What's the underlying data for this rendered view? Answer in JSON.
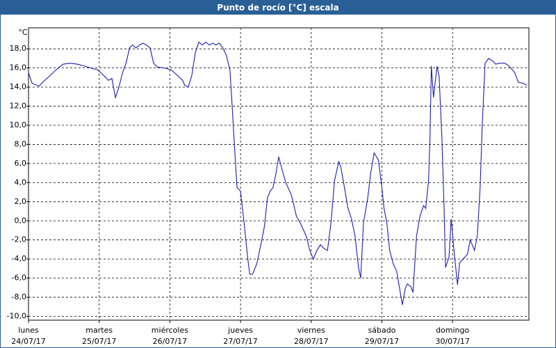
{
  "chart_data": {
    "type": "line",
    "title": "Punto de rocío [°C] escala",
    "y_label": "°C",
    "color": "#1c1cb0",
    "grid": true,
    "xlim": [
      0,
      7.08
    ],
    "ylim": [
      -10.4,
      20.2
    ],
    "yticks": [
      {
        "value": 18,
        "label": "18,0"
      },
      {
        "value": 16,
        "label": "16,0"
      },
      {
        "value": 14,
        "label": "14,0"
      },
      {
        "value": 12,
        "label": "12,0"
      },
      {
        "value": 10,
        "label": "10,0"
      },
      {
        "value": 8,
        "label": "8,0"
      },
      {
        "value": 6,
        "label": "6,0"
      },
      {
        "value": 4,
        "label": "4,0"
      },
      {
        "value": 2,
        "label": "2,0"
      },
      {
        "value": 0,
        "label": "0,0"
      },
      {
        "value": -2,
        "label": "-2,0"
      },
      {
        "value": -4,
        "label": "-4,0"
      },
      {
        "value": -6,
        "label": "-6,0"
      },
      {
        "value": -8,
        "label": "-8,0"
      },
      {
        "value": -10,
        "label": "-10,0"
      }
    ],
    "xticks": [
      {
        "value": 0,
        "label": "lunes",
        "date": "24/07/17"
      },
      {
        "value": 1,
        "label": "martes",
        "date": "25/07/17"
      },
      {
        "value": 2,
        "label": "miércoles",
        "date": "26/07/17"
      },
      {
        "value": 3,
        "label": "jueves",
        "date": "27/07/17"
      },
      {
        "value": 4,
        "label": "viernes",
        "date": "28/07/17"
      },
      {
        "value": 5,
        "label": "sábado",
        "date": "29/07/17"
      },
      {
        "value": 6,
        "label": "domingo",
        "date": "30/07/17"
      }
    ],
    "x": [
      0,
      0.05,
      0.15,
      0.2,
      0.29,
      0.39,
      0.49,
      0.59,
      0.69,
      0.79,
      0.88,
      0.98,
      1.08,
      1.13,
      1.18,
      1.23,
      1.28,
      1.33,
      1.38,
      1.43,
      1.47,
      1.52,
      1.57,
      1.62,
      1.67,
      1.72,
      1.77,
      1.82,
      1.92,
      2.02,
      2.11,
      2.18,
      2.21,
      2.26,
      2.31,
      2.36,
      2.41,
      2.46,
      2.51,
      2.56,
      2.61,
      2.65,
      2.7,
      2.75,
      2.8,
      2.85,
      2.88,
      2.92,
      2.95,
      3.0,
      3.05,
      3.1,
      3.13,
      3.17,
      3.23,
      3.29,
      3.34,
      3.38,
      3.42,
      3.46,
      3.5,
      3.54,
      3.59,
      3.64,
      3.72,
      3.79,
      3.85,
      3.93,
      3.98,
      4.03,
      4.08,
      4.13,
      4.18,
      4.23,
      4.28,
      4.33,
      4.39,
      4.42,
      4.47,
      4.52,
      4.57,
      4.62,
      4.67,
      4.7,
      4.74,
      4.8,
      4.84,
      4.89,
      4.95,
      5.0,
      5.03,
      5.07,
      5.11,
      5.16,
      5.21,
      5.29,
      5.33,
      5.36,
      5.41,
      5.44,
      5.49,
      5.54,
      5.59,
      5.62,
      5.66,
      5.68,
      5.7,
      5.73,
      5.78,
      5.81,
      5.85,
      5.88,
      5.9,
      5.95,
      5.98,
      6.02,
      6.07,
      6.1,
      6.15,
      6.21,
      6.25,
      6.31,
      6.35,
      6.39,
      6.42,
      6.46,
      6.51,
      6.57,
      6.61,
      6.67,
      6.74,
      6.8,
      6.88,
      6.93,
      7.0,
      7.05
    ],
    "values": [
      15.5,
      14.4,
      14.1,
      14.5,
      15.1,
      15.8,
      16.4,
      16.5,
      16.4,
      16.2,
      16.0,
      15.8,
      15.1,
      14.7,
      14.9,
      12.9,
      14.0,
      15.5,
      16.5,
      18.1,
      18.4,
      18.1,
      18.4,
      18.6,
      18.4,
      18.1,
      16.5,
      16.1,
      16.0,
      15.8,
      15.2,
      14.7,
      14.2,
      14.0,
      15.2,
      17.6,
      18.7,
      18.4,
      18.7,
      18.4,
      18.6,
      18.4,
      18.6,
      18.1,
      17.3,
      15.8,
      12.2,
      7.1,
      3.5,
      3.1,
      -0.2,
      -3.8,
      -5.6,
      -5.6,
      -4.5,
      -2.4,
      -0.5,
      2.4,
      3.1,
      3.5,
      4.9,
      6.7,
      5.3,
      4.0,
      2.7,
      0.5,
      -0.3,
      -1.6,
      -3.1,
      -4.0,
      -3.1,
      -2.5,
      -2.9,
      -3.1,
      -0.2,
      4.2,
      6.2,
      5.6,
      3.5,
      1.3,
      0.2,
      -1.6,
      -4.9,
      -6.0,
      -0.2,
      2.4,
      4.9,
      7.1,
      6.4,
      3.5,
      1.3,
      -0.2,
      -3.1,
      -4.5,
      -5.3,
      -8.8,
      -7.1,
      -6.6,
      -6.9,
      -7.5,
      -1.6,
      0.5,
      1.6,
      1.3,
      4.2,
      8.5,
      16.2,
      12.9,
      16.2,
      15.1,
      8.5,
      1.3,
      -4.9,
      -3.8,
      0.2,
      -3.1,
      -6.7,
      -4.4,
      -4.0,
      -3.5,
      -2.0,
      -3.1,
      -1.6,
      3.5,
      10.0,
      16.5,
      17.0,
      16.7,
      16.4,
      16.5,
      16.5,
      16.2,
      15.5,
      14.5,
      14.4,
      14.2
    ]
  }
}
